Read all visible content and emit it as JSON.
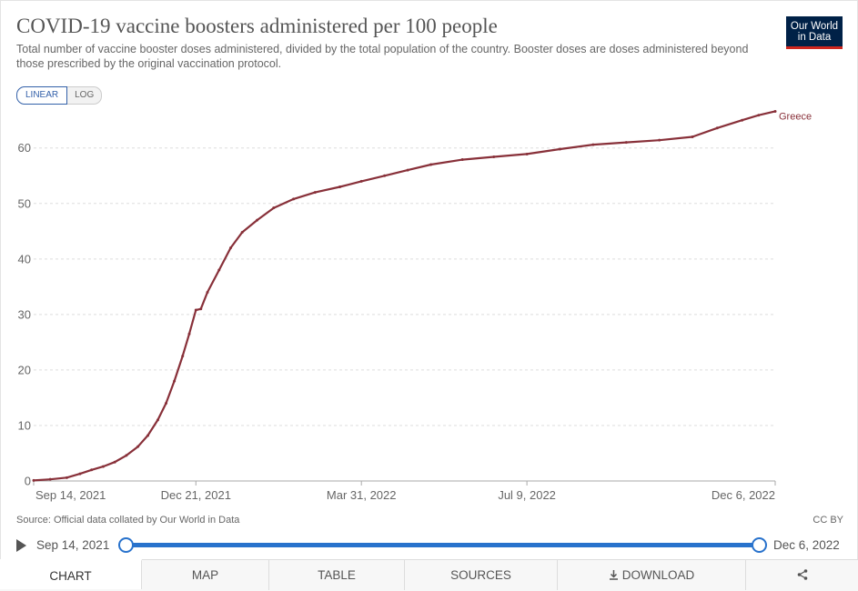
{
  "header": {
    "title": "COVID-19 vaccine boosters administered per 100 people",
    "subtitle": "Total number of vaccine booster doses administered, divided by the total population of the country. Booster doses are doses administered beyond those prescribed by the original vaccination protocol.",
    "logo_line1": "Our World",
    "logo_line2": "in Data"
  },
  "scale_toggle": {
    "linear": "LINEAR",
    "log": "LOG"
  },
  "chart_data": {
    "type": "line",
    "title": "COVID-19 vaccine boosters administered per 100 people",
    "xlabel": "",
    "ylabel": "",
    "x_range": [
      "2021-09-14",
      "2022-12-06"
    ],
    "ylim": [
      0,
      67
    ],
    "y_ticks": [
      0,
      10,
      20,
      30,
      40,
      50,
      60
    ],
    "x_ticks": [
      "Sep 14, 2021",
      "Dec 21, 2021",
      "Mar 31, 2022",
      "Jul 9, 2022",
      "Dec 6, 2022"
    ],
    "grid": "horizontal dashed",
    "series": [
      {
        "name": "Greece",
        "color": "#883039",
        "points": [
          [
            "2021-09-14",
            0.1
          ],
          [
            "2021-09-24",
            0.3
          ],
          [
            "2021-10-04",
            0.6
          ],
          [
            "2021-10-12",
            1.3
          ],
          [
            "2021-10-19",
            2.0
          ],
          [
            "2021-10-26",
            2.6
          ],
          [
            "2021-11-02",
            3.4
          ],
          [
            "2021-11-09",
            4.6
          ],
          [
            "2021-11-16",
            6.2
          ],
          [
            "2021-11-22",
            8.2
          ],
          [
            "2021-11-28",
            11.0
          ],
          [
            "2021-12-03",
            14.0
          ],
          [
            "2021-12-08",
            18.0
          ],
          [
            "2021-12-13",
            22.5
          ],
          [
            "2021-12-17",
            26.5
          ],
          [
            "2021-12-21",
            30.8
          ],
          [
            "2021-12-24",
            31.0
          ],
          [
            "2021-12-28",
            34.0
          ],
          [
            "2022-01-04",
            38.0
          ],
          [
            "2022-01-11",
            42.0
          ],
          [
            "2022-01-18",
            44.8
          ],
          [
            "2022-01-27",
            47.0
          ],
          [
            "2022-02-06",
            49.2
          ],
          [
            "2022-02-18",
            50.8
          ],
          [
            "2022-03-03",
            52.0
          ],
          [
            "2022-03-18",
            53.0
          ],
          [
            "2022-03-31",
            54.0
          ],
          [
            "2022-04-14",
            55.0
          ],
          [
            "2022-04-28",
            56.0
          ],
          [
            "2022-05-12",
            57.0
          ],
          [
            "2022-05-31",
            57.9
          ],
          [
            "2022-06-19",
            58.4
          ],
          [
            "2022-07-09",
            58.9
          ],
          [
            "2022-07-29",
            59.8
          ],
          [
            "2022-08-18",
            60.6
          ],
          [
            "2022-09-07",
            61.0
          ],
          [
            "2022-09-27",
            61.4
          ],
          [
            "2022-10-17",
            62.0
          ],
          [
            "2022-11-01",
            63.6
          ],
          [
            "2022-11-16",
            65.0
          ],
          [
            "2022-11-26",
            65.9
          ],
          [
            "2022-12-06",
            66.6
          ]
        ]
      }
    ]
  },
  "footer": {
    "source": "Source: Official data collated by Our World in Data",
    "license": "CC BY"
  },
  "timeline": {
    "start": "Sep 14, 2021",
    "end": "Dec 6, 2022"
  },
  "tabs": {
    "chart": "CHART",
    "map": "MAP",
    "table": "TABLE",
    "sources": "SOURCES",
    "download": "DOWNLOAD"
  }
}
